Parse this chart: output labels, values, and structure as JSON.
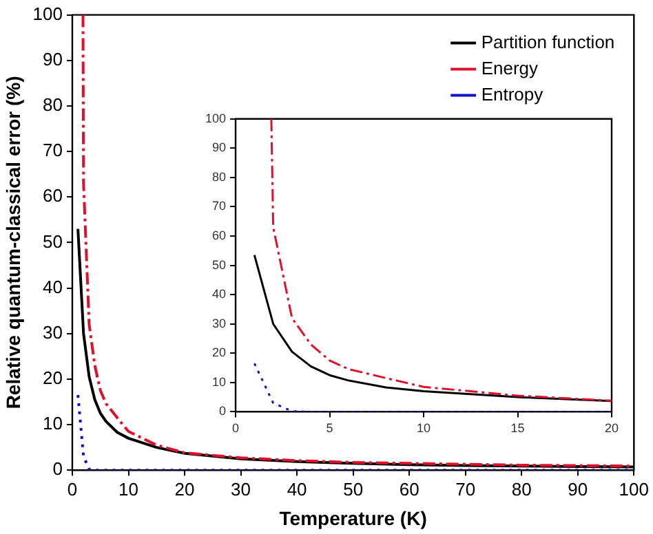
{
  "chart_data": [
    {
      "type": "line",
      "xlabel": "Temperature (K)",
      "ylabel": "Relative quantum-classical error (%)",
      "xlim": [
        0,
        100
      ],
      "ylim": [
        0,
        100
      ],
      "xticks": [
        0,
        10,
        20,
        30,
        40,
        50,
        60,
        70,
        80,
        90,
        100
      ],
      "yticks": [
        0,
        10,
        20,
        30,
        40,
        50,
        60,
        70,
        80,
        90,
        100
      ],
      "grid": false,
      "legend": "top right",
      "marker": "none",
      "series": [
        {
          "name": "Partition function",
          "color": "#000000",
          "line_style": "solid",
          "x": [
            1,
            2,
            3,
            4,
            5,
            6,
            8,
            10,
            15,
            20,
            30,
            40,
            50,
            60,
            70,
            80,
            90,
            100
          ],
          "values": [
            53,
            30,
            20.5,
            15.5,
            12.5,
            10.7,
            8.3,
            7,
            5,
            3.7,
            2.5,
            1.9,
            1.5,
            1.2,
            1,
            0.9,
            0.8,
            0.7
          ]
        },
        {
          "name": "Energy",
          "color": "#e0102a",
          "line_style": "dashed",
          "x": [
            1.9,
            2,
            3,
            4,
            5,
            6,
            8,
            10,
            15,
            20,
            30,
            40,
            50,
            60,
            70,
            80,
            90,
            100
          ],
          "values": [
            100,
            63,
            32,
            23,
            17.5,
            14.6,
            11.5,
            8.5,
            5.5,
            3.8,
            2.7,
            2.1,
            1.7,
            1.5,
            1.3,
            1.1,
            1,
            0.9
          ]
        },
        {
          "name": "Entropy",
          "color": "#1010d0",
          "line_style": "dotted",
          "x": [
            1,
            2,
            3,
            4,
            5,
            10,
            20,
            30,
            40,
            50,
            60,
            70,
            80,
            90,
            100
          ],
          "values": [
            16.5,
            3,
            0.2,
            0,
            0,
            0,
            0,
            0,
            0,
            0,
            0,
            0,
            0,
            0,
            0
          ]
        }
      ]
    },
    {
      "type": "line",
      "xlim": [
        0,
        20
      ],
      "ylim": [
        0,
        100
      ],
      "xticks": [
        0,
        5,
        10,
        15,
        20
      ],
      "yticks": [
        0,
        10,
        20,
        30,
        40,
        50,
        60,
        70,
        80,
        90,
        100
      ],
      "grid": false,
      "legend": false,
      "marker": "none",
      "series": [
        {
          "color": "#000000",
          "line_style": "solid",
          "x": [
            1,
            2,
            3,
            4,
            5,
            6,
            8,
            10,
            15,
            20
          ],
          "values": [
            53.5,
            30,
            20.5,
            15.5,
            12.5,
            10.7,
            8.3,
            7,
            5,
            3.7
          ]
        },
        {
          "color": "#e0102a",
          "line_style": "dashed",
          "x": [
            1.9,
            2,
            3,
            4,
            5,
            6,
            8,
            10,
            15,
            20
          ],
          "values": [
            100,
            63,
            32,
            23,
            17.5,
            14.6,
            11.5,
            8.5,
            5.5,
            3.8
          ]
        },
        {
          "color": "#1010d0",
          "line_style": "dotted",
          "x": [
            1,
            2,
            3,
            4,
            5,
            10,
            15,
            20
          ],
          "values": [
            16.5,
            3,
            0.2,
            0,
            0,
            0,
            0,
            0
          ]
        }
      ]
    }
  ]
}
